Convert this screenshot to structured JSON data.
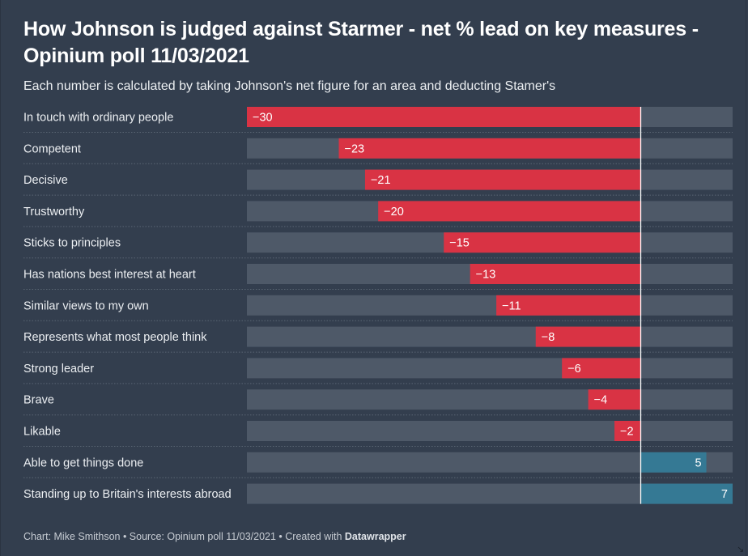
{
  "header": {
    "title": "How Johnson is judged against Starmer - net % lead on key measures - Opinium poll 11/03/2021",
    "subtitle": "Each number is calculated by taking Johnson's net figure for an area and deducting Stamer's"
  },
  "footer": {
    "prefix": "Chart: Mike Smithson • Source: Opinium poll 11/03/2021 • Created with ",
    "brand": "Datawrapper"
  },
  "colors": {
    "background": "#333e4e",
    "bar_track": "#4e5968",
    "negative": "#d93344",
    "positive": "#357994",
    "zero_line": "#ffffff"
  },
  "icons": {
    "corner": "resize-handle-icon"
  },
  "chart_data": {
    "type": "bar",
    "orientation": "horizontal",
    "title": "How Johnson is judged against Starmer - net % lead on key measures - Opinium poll 11/03/2021",
    "subtitle": "Each number is calculated by taking Johnson's net figure for an area and deducting Stamer's",
    "xlabel": "",
    "ylabel": "",
    "xlim": [
      -30,
      7
    ],
    "grid": false,
    "legend": "none",
    "categories": [
      "In touch with ordinary people",
      "Competent",
      "Decisive",
      "Trustworthy",
      "Sticks to principles",
      "Has nations best interest at heart",
      "Similar views to my own",
      "Represents what most people think",
      "Strong leader",
      "Brave",
      "Likable",
      "Able to get things done",
      "Standing up to Britain's interests abroad"
    ],
    "values": [
      -30,
      -23,
      -21,
      -20,
      -15,
      -13,
      -11,
      -8,
      -6,
      -4,
      -2,
      5,
      7
    ],
    "value_labels": [
      "−30",
      "−23",
      "−21",
      "−20",
      "−15",
      "−13",
      "−11",
      "−8",
      "−6",
      "−4",
      "−2",
      "5",
      "7"
    ]
  }
}
